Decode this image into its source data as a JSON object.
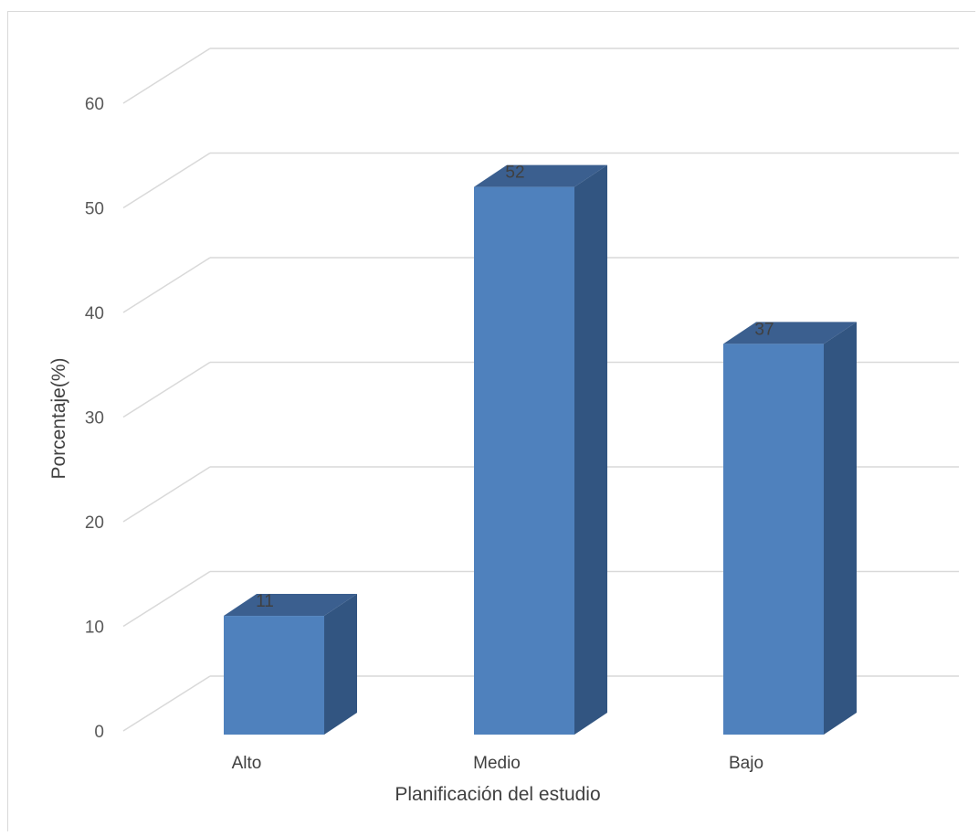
{
  "chart_data": {
    "type": "bar",
    "style": "3d-column",
    "categories": [
      "Alto",
      "Medio",
      "Bajo"
    ],
    "values": [
      11,
      52,
      37
    ],
    "data_labels": [
      "11",
      "52",
      "37"
    ],
    "title": "",
    "xlabel": "Planificación del estudio",
    "ylabel": "Porcentaje(%)",
    "ylim": [
      0,
      60
    ],
    "yticks": [
      0,
      10,
      20,
      30,
      40,
      50,
      60
    ],
    "grid": true,
    "legend": "none",
    "colors": {
      "front": "#4f81bd",
      "side": "#325581",
      "top": "#3b5f8f",
      "grid": "#d9d9d9"
    }
  }
}
